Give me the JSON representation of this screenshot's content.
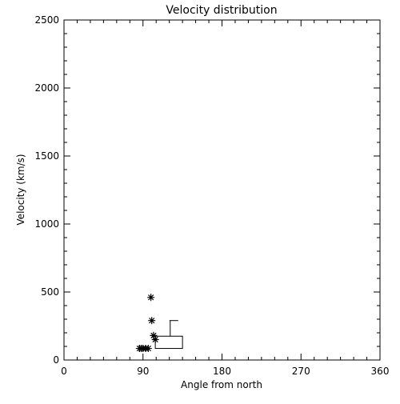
{
  "chart_data": {
    "type": "scatter",
    "title": "Velocity distribution",
    "xlabel": "Angle from north",
    "ylabel": "Velocity (km/s)",
    "xlim": [
      0,
      360
    ],
    "ylim": [
      0,
      2500
    ],
    "x_ticks": [
      0,
      90,
      180,
      270,
      360
    ],
    "y_ticks": [
      0,
      500,
      1000,
      1500,
      2000,
      2500
    ],
    "grid": false,
    "legend": "none",
    "points": [
      {
        "x": 86,
        "y": 85
      },
      {
        "x": 88,
        "y": 85
      },
      {
        "x": 90,
        "y": 85
      },
      {
        "x": 93,
        "y": 85
      },
      {
        "x": 96,
        "y": 85
      },
      {
        "x": 99,
        "y": 460
      },
      {
        "x": 100,
        "y": 290
      },
      {
        "x": 102,
        "y": 180
      },
      {
        "x": 104,
        "y": 150
      }
    ],
    "box": {
      "x_range": [
        104,
        135
      ],
      "q1": 85,
      "q3": 175,
      "whisker_x": 121,
      "whisker_high": 290
    }
  }
}
